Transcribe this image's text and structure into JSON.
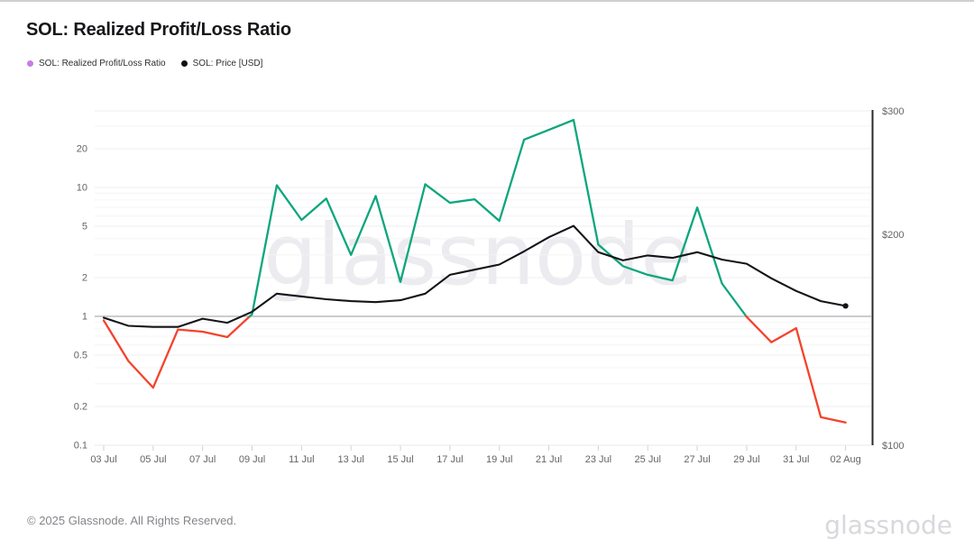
{
  "header": {
    "title": "SOL: Realized Profit/Loss Ratio"
  },
  "legend": {
    "ratio": {
      "label": "SOL: Realized Profit/Loss Ratio",
      "dot_color": "#c77ce6"
    },
    "price": {
      "label": "SOL: Price [USD]",
      "dot_color": "#111114"
    }
  },
  "watermark": "glassnode",
  "footer": {
    "copyright": "© 2025 Glassnode. All Rights Reserved.",
    "logo": "glassnode"
  },
  "colors": {
    "ratio_above_1": "#0ca67d",
    "ratio_below_1": "#f4432c",
    "price_line": "#141418",
    "baseline_gray": "#bcbbc1",
    "grid_minor": "#f5f3f6",
    "grid_labeled": "#efedf2",
    "axis_line": "#2a2a2e",
    "axis_text": "#64646a"
  },
  "chart_data": {
    "type": "line",
    "title": "SOL: Realized Profit/Loss Ratio",
    "x_tick_labels": [
      "03 Jul",
      "05 Jul",
      "07 Jul",
      "09 Jul",
      "11 Jul",
      "13 Jul",
      "15 Jul",
      "17 Jul",
      "19 Jul",
      "21 Jul",
      "23 Jul",
      "25 Jul",
      "27 Jul",
      "29 Jul",
      "31 Jul",
      "02 Aug"
    ],
    "dates": [
      "03 Jul",
      "04 Jul",
      "05 Jul",
      "06 Jul",
      "07 Jul",
      "08 Jul",
      "09 Jul",
      "10 Jul",
      "11 Jul",
      "12 Jul",
      "13 Jul",
      "14 Jul",
      "15 Jul",
      "16 Jul",
      "17 Jul",
      "18 Jul",
      "19 Jul",
      "20 Jul",
      "21 Jul",
      "22 Jul",
      "23 Jul",
      "24 Jul",
      "25 Jul",
      "26 Jul",
      "27 Jul",
      "28 Jul",
      "29 Jul",
      "30 Jul",
      "31 Jul",
      "01 Aug",
      "02 Aug"
    ],
    "series": [
      {
        "name": "SOL: Realized Profit/Loss Ratio",
        "axis": "left",
        "threshold": 1,
        "values": [
          0.93,
          0.45,
          0.28,
          0.79,
          0.76,
          0.69,
          1.04,
          10.4,
          5.6,
          8.2,
          3.0,
          8.6,
          1.85,
          10.6,
          7.6,
          8.1,
          5.5,
          23.5,
          28,
          33.4,
          3.6,
          2.45,
          2.1,
          1.9,
          7.0,
          1.8,
          0.99,
          0.63,
          0.81,
          0.165,
          0.15
        ]
      },
      {
        "name": "SOL: Price [USD]",
        "axis": "right",
        "values": [
          152,
          148,
          147.5,
          147.5,
          151.5,
          149.5,
          155,
          164.5,
          163,
          161.5,
          160.5,
          160,
          161,
          164.5,
          175,
          178,
          181,
          189,
          198,
          205.5,
          188.5,
          183.5,
          186.5,
          185,
          188.5,
          184,
          181.5,
          173,
          166,
          160.5,
          158
        ]
      }
    ],
    "left_axis": {
      "scale": "log",
      "ticks": [
        20,
        10,
        5,
        2,
        1,
        0.5,
        0.2,
        0.1
      ],
      "tick_labels": [
        "20",
        "10",
        "5",
        "2",
        "1",
        "0.5",
        "0.2",
        "0.1"
      ],
      "range": [
        0.1,
        39
      ]
    },
    "right_axis": {
      "scale": "log",
      "ticks": [
        300,
        200,
        100
      ],
      "tick_labels": [
        "$300",
        "$200",
        "$100"
      ],
      "range": [
        100,
        300
      ]
    },
    "baseline": 1,
    "grid": "horizontal-log-minor",
    "legend_position": "top-left"
  }
}
